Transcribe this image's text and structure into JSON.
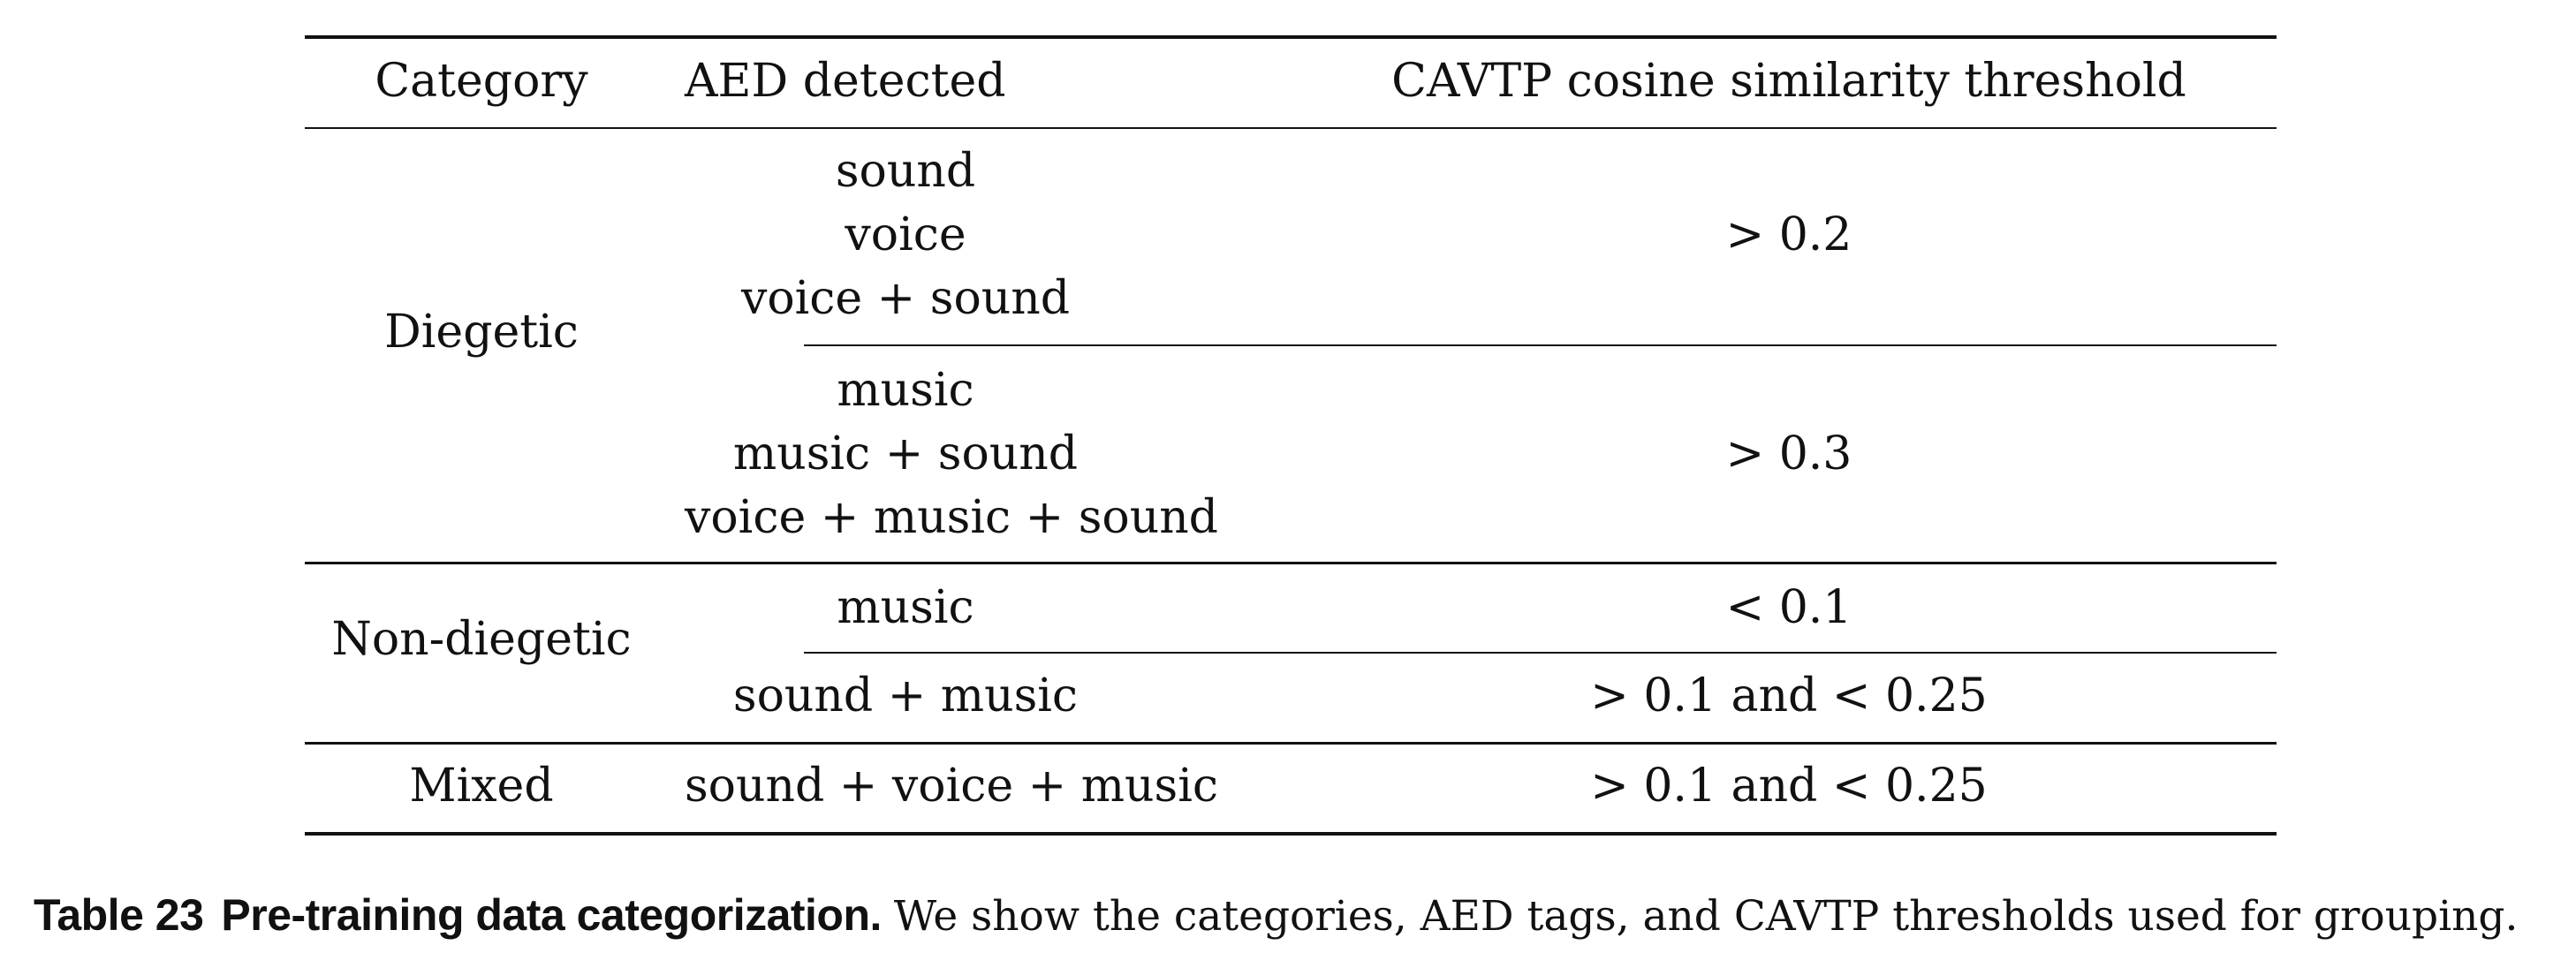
{
  "table": {
    "headers": [
      "Category",
      "AED detected",
      "CAVTP cosine similarity threshold"
    ],
    "groups": [
      {
        "category": "Diegetic",
        "rows": [
          {
            "aed": [
              "sound",
              "voice",
              "voice + sound"
            ],
            "threshold": "> 0.2"
          },
          {
            "aed": [
              "music",
              "music + sound",
              "voice + music + sound"
            ],
            "threshold": "> 0.3"
          }
        ]
      },
      {
        "category": "Non-diegetic",
        "rows": [
          {
            "aed": [
              "music"
            ],
            "threshold": "< 0.1"
          },
          {
            "aed": [
              "sound + music"
            ],
            "threshold": "> 0.1 and < 0.25"
          }
        ]
      },
      {
        "category": "Mixed",
        "rows": [
          {
            "aed": [
              "sound + voice + music"
            ],
            "threshold": "> 0.1 and < 0.25"
          }
        ]
      }
    ]
  },
  "caption": {
    "label": "Table 23",
    "title": "Pre-training data categorization.",
    "body": "We show the categories, AED tags, and CAVTP thresholds used for grouping."
  }
}
